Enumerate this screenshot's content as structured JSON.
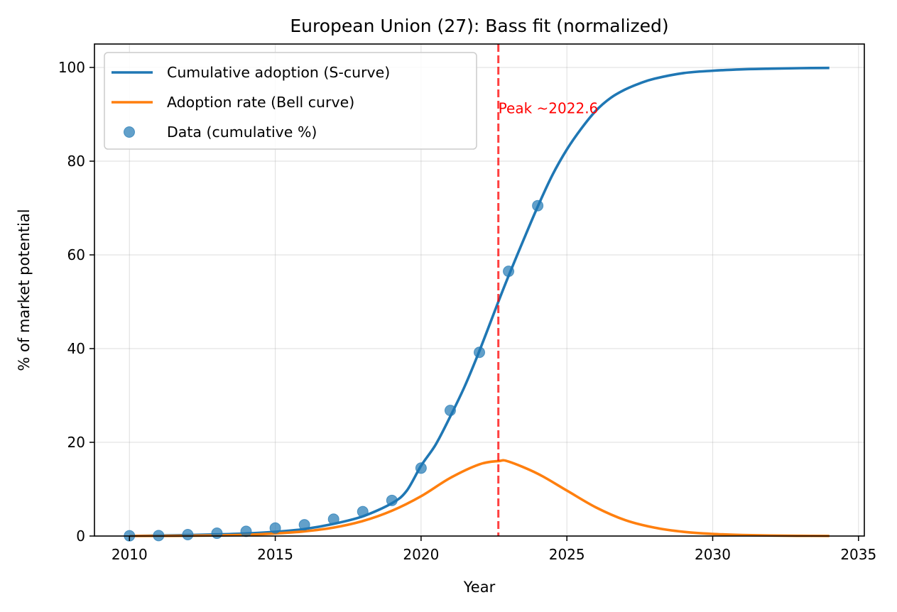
{
  "chart_data": {
    "type": "line",
    "title": "European Union (27): Bass fit (normalized)",
    "xlabel": "Year",
    "ylabel": "% of market potential",
    "xlim": [
      2008.8,
      2035.2
    ],
    "ylim": [
      0,
      105
    ],
    "xticks": [
      2010,
      2015,
      2020,
      2025,
      2030,
      2035
    ],
    "yticks": [
      0,
      20,
      40,
      60,
      80,
      100
    ],
    "grid": true,
    "legend_position": "upper-left",
    "peak_line": {
      "x": 2022.65,
      "label": "Peak ~2022.6",
      "color": "#ff0000"
    },
    "series": [
      {
        "name": "Cumulative adoption (S-curve)",
        "kind": "line",
        "color": "#1f77b4",
        "x": [
          2010,
          2011,
          2012,
          2013,
          2014,
          2015,
          2016,
          2017,
          2018,
          2019,
          2019.5,
          2020,
          2020.5,
          2021,
          2021.5,
          2022,
          2022.65,
          2023,
          2023.5,
          2024,
          2024.5,
          2025,
          2025.5,
          2026,
          2026.5,
          2027,
          2027.5,
          2028,
          2029,
          2030,
          2031,
          2032,
          2033,
          2034
        ],
        "y": [
          0.02,
          0.1,
          0.2,
          0.35,
          0.55,
          0.9,
          1.5,
          2.6,
          4.2,
          7.0,
          9.6,
          15.0,
          19.5,
          25.5,
          32.0,
          39.5,
          50.0,
          55.5,
          63.0,
          70.3,
          77.0,
          82.5,
          87.0,
          90.8,
          93.5,
          95.3,
          96.6,
          97.6,
          98.8,
          99.3,
          99.6,
          99.75,
          99.85,
          99.9
        ]
      },
      {
        "name": "Adoption rate (Bell curve)",
        "kind": "line",
        "color": "#ff7f0e",
        "x": [
          2010,
          2011,
          2012,
          2013,
          2014,
          2015,
          2016,
          2017,
          2018,
          2019,
          2020,
          2021,
          2022,
          2022.65,
          2023,
          2024,
          2025,
          2026,
          2027,
          2028,
          2029,
          2030,
          2031,
          2032,
          2033,
          2034
        ],
        "y": [
          0.01,
          0.03,
          0.06,
          0.13,
          0.27,
          0.55,
          1.0,
          1.8,
          3.2,
          5.4,
          8.5,
          12.4,
          15.3,
          16.0,
          15.9,
          13.3,
          9.7,
          6.1,
          3.4,
          1.8,
          0.9,
          0.45,
          0.22,
          0.1,
          0.05,
          0.02
        ]
      },
      {
        "name": "Data (cumulative %)",
        "kind": "scatter",
        "color": "#1f77b4",
        "x": [
          2010,
          2011,
          2012,
          2013,
          2014,
          2015,
          2016,
          2017,
          2018,
          2019,
          2020,
          2021,
          2022,
          2023,
          2024
        ],
        "y": [
          0.05,
          0.1,
          0.3,
          0.6,
          1.0,
          1.7,
          2.4,
          3.6,
          5.2,
          7.6,
          14.5,
          26.8,
          39.2,
          56.5,
          70.5
        ]
      }
    ]
  }
}
